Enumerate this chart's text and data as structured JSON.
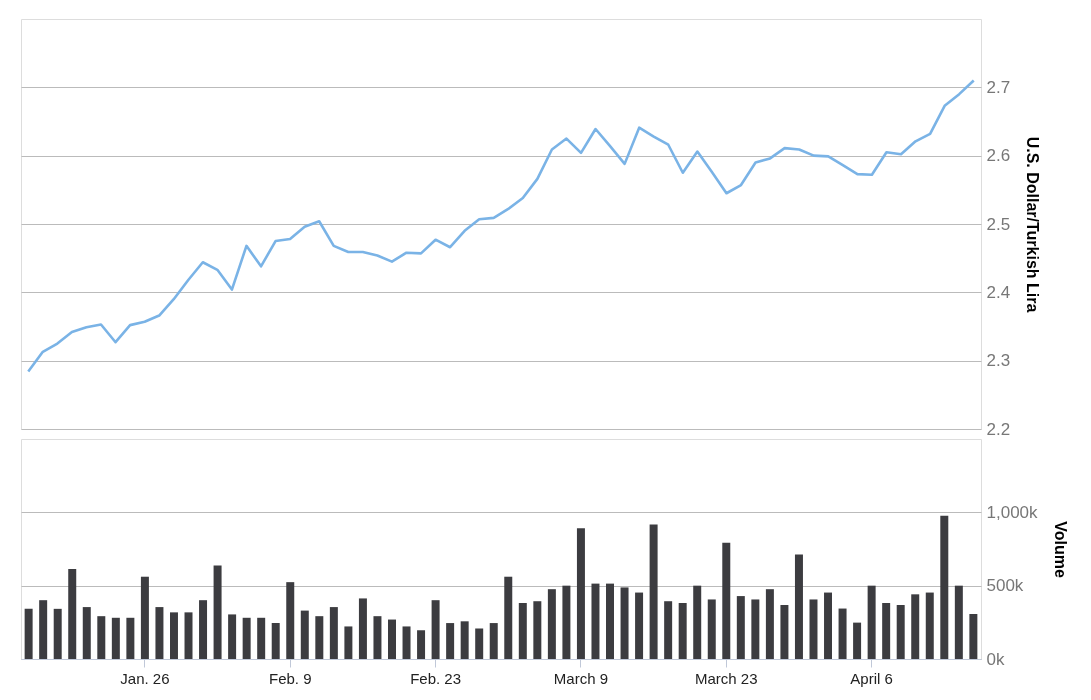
{
  "chart_data": [
    {
      "type": "line",
      "ylabel": "U.S. Dollar/Turkish Lira",
      "series": [
        {
          "color": "#7ab3e6",
          "values": [
            2.284,
            2.313,
            2.325,
            2.342,
            2.349,
            2.353,
            2.327,
            2.352,
            2.357,
            2.366,
            2.39,
            2.418,
            2.444,
            2.433,
            2.404,
            2.468,
            2.438,
            2.475,
            2.478,
            2.496,
            2.504,
            2.468,
            2.459,
            2.459,
            2.454,
            2.445,
            2.458,
            2.457,
            2.477,
            2.466,
            2.49,
            2.507,
            2.509,
            2.522,
            2.538,
            2.566,
            2.609,
            2.625,
            2.604,
            2.639,
            2.614,
            2.588,
            2.641,
            2.628,
            2.616,
            2.575,
            2.606,
            2.576,
            2.545,
            2.557,
            2.59,
            2.596,
            2.611,
            2.609,
            2.6,
            2.599,
            2.586,
            2.573,
            2.572,
            2.605,
            2.602,
            2.621,
            2.632,
            2.673,
            2.69,
            2.71
          ]
        }
      ],
      "ylim": [
        2.2,
        2.8
      ],
      "yticks": [
        2.2,
        2.3,
        2.4,
        2.5,
        2.6,
        2.7
      ],
      "grid": "y",
      "tick_labels": "y"
    },
    {
      "type": "bar",
      "ylabel": "Volume",
      "categories": [
        null,
        null,
        null,
        null,
        null,
        null,
        null,
        null,
        "Jan. 26",
        null,
        null,
        null,
        null,
        null,
        null,
        null,
        null,
        null,
        "Feb. 9",
        null,
        null,
        null,
        null,
        null,
        null,
        null,
        null,
        null,
        "Feb. 23",
        null,
        null,
        null,
        null,
        null,
        null,
        null,
        null,
        null,
        "March 9",
        null,
        null,
        null,
        null,
        null,
        null,
        null,
        null,
        null,
        "March 23",
        null,
        null,
        null,
        null,
        null,
        null,
        null,
        null,
        null,
        "April 6",
        null,
        null,
        null,
        null,
        null,
        null,
        null
      ],
      "series": [
        {
          "color": "#3c3c40",
          "values": [
            342000,
            401000,
            342000,
            613000,
            354000,
            292000,
            281000,
            281000,
            561000,
            354000,
            318000,
            318000,
            401000,
            637000,
            304000,
            281000,
            281000,
            245000,
            524000,
            330000,
            292000,
            354000,
            222000,
            413000,
            292000,
            269000,
            222000,
            196000,
            401000,
            245000,
            257000,
            208000,
            245000,
            561000,
            382000,
            394000,
            476000,
            500000,
            892000,
            514000,
            514000,
            488000,
            453000,
            917000,
            394000,
            382000,
            500000,
            406000,
            792000,
            429000,
            406000,
            476000,
            368000,
            712000,
            406000,
            453000,
            344000,
            248000,
            500000,
            382000,
            368000,
            441000,
            453000,
            976000,
            500000,
            307000
          ]
        }
      ],
      "ylim": [
        0,
        1500000
      ],
      "yticks": [
        {
          "value": 0,
          "label": "0k"
        },
        {
          "value": 500000,
          "label": "500k"
        },
        {
          "value": 1000000,
          "label": "1,000k"
        }
      ],
      "grid": "y"
    }
  ]
}
